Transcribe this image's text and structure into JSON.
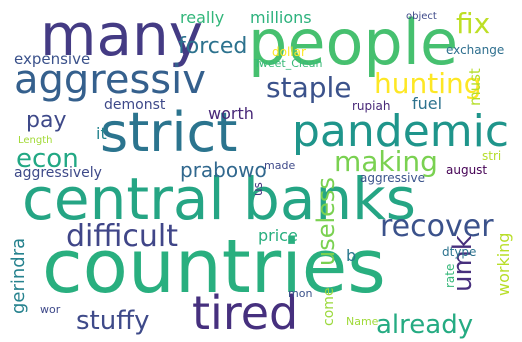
{
  "words": [
    {
      "text": "central banks",
      "color": "#25a584"
    },
    {
      "text": "countries",
      "color": "#29af7f"
    },
    {
      "text": "people",
      "color": "#46c06f"
    },
    {
      "text": "strict",
      "color": "#2b748e"
    },
    {
      "text": "many",
      "color": "#443b84"
    },
    {
      "text": "pandemic",
      "color": "#1f958b"
    },
    {
      "text": "aggressiv",
      "color": "#35608d"
    },
    {
      "text": "tired",
      "color": "#46307e"
    },
    {
      "text": "difficult",
      "color": "#404688"
    },
    {
      "text": "recover",
      "color": "#3b528b"
    },
    {
      "text": "stuffy",
      "color": "#3e4a89"
    },
    {
      "text": "already",
      "color": "#25ab82"
    },
    {
      "text": "hunting",
      "color": "#fde725"
    },
    {
      "text": "making",
      "color": "#7ad151"
    },
    {
      "text": "staple",
      "color": "#3b528b"
    },
    {
      "text": "econ",
      "color": "#22a884"
    },
    {
      "text": "prabowo",
      "color": "#31688e"
    },
    {
      "text": "forced",
      "color": "#2c728e"
    },
    {
      "text": "fix",
      "color": "#bddf26"
    },
    {
      "text": "useless",
      "color": "#7ad151"
    },
    {
      "text": "umk",
      "color": "#472f7d"
    },
    {
      "text": "gerindra",
      "color": "#26828e"
    },
    {
      "text": "working",
      "color": "#b8de29"
    },
    {
      "text": "pay",
      "color": "#3e4989"
    },
    {
      "text": "expensive",
      "color": "#3b528b"
    },
    {
      "text": "really",
      "color": "#32b67a"
    },
    {
      "text": "millions",
      "color": "#2db27d"
    },
    {
      "text": "worth",
      "color": "#482878"
    },
    {
      "text": "demonst",
      "color": "#3e4989"
    },
    {
      "text": "fuel",
      "color": "#2c728e"
    },
    {
      "text": "must",
      "color": "#b5de2b"
    },
    {
      "text": "exchange",
      "color": "#2e6f8e"
    },
    {
      "text": "aggressively",
      "color": "#3e4a89"
    },
    {
      "text": "aggressive",
      "color": "#3a538b"
    },
    {
      "text": "august",
      "color": "#440154"
    },
    {
      "text": "price",
      "color": "#29af7f"
    },
    {
      "text": "dtype",
      "color": "#2c728e"
    },
    {
      "text": "rate",
      "color": "#35b779"
    },
    {
      "text": "dollar",
      "color": "#fde725"
    },
    {
      "text": "Tweet_Clean",
      "color": "#38b977"
    },
    {
      "text": "object",
      "color": "#3e4a89"
    },
    {
      "text": "rupiah",
      "color": "#482878"
    },
    {
      "text": "it",
      "color": "#25848e"
    },
    {
      "text": "Length",
      "color": "#a2da37"
    },
    {
      "text": "made",
      "color": "#3e4989"
    },
    {
      "text": "us",
      "color": "#46337f"
    },
    {
      "text": "stri",
      "color": "#b5de2b"
    },
    {
      "text": "b",
      "color": "#2a788e"
    },
    {
      "text": "mon",
      "color": "#3b528b"
    },
    {
      "text": "come",
      "color": "#9bd93c"
    },
    {
      "text": "Name",
      "color": "#a0da39"
    },
    {
      "text": "wor",
      "color": "#3e4989"
    }
  ]
}
